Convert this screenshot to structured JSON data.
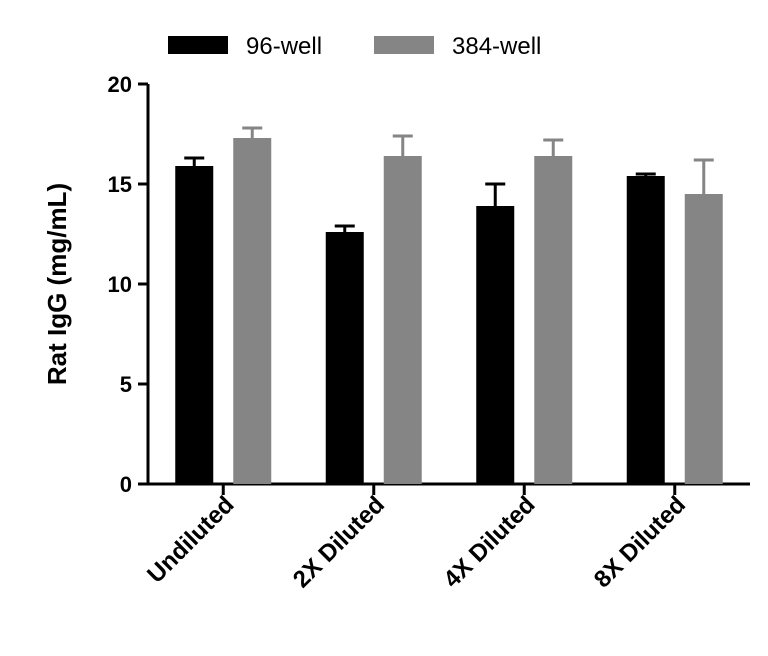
{
  "chart_data": {
    "type": "bar",
    "title": "",
    "xlabel": "",
    "ylabel": "Rat IgG (mg/mL)",
    "ylim": [
      0,
      20
    ],
    "yticks": [
      0,
      5,
      10,
      15,
      20
    ],
    "categories": [
      "Undiluted",
      "2X Diluted",
      "4X Diluted",
      "8X Diluted"
    ],
    "series": [
      {
        "name": "96-well",
        "color": "#000000",
        "values": [
          15.9,
          12.6,
          13.9,
          15.4
        ],
        "errors": [
          0.4,
          0.3,
          1.1,
          0.1
        ]
      },
      {
        "name": "384-well",
        "color": "#858585",
        "values": [
          17.3,
          16.4,
          16.4,
          14.5
        ],
        "errors": [
          0.5,
          1.0,
          0.8,
          1.7
        ]
      }
    ],
    "legend_position": "top"
  }
}
